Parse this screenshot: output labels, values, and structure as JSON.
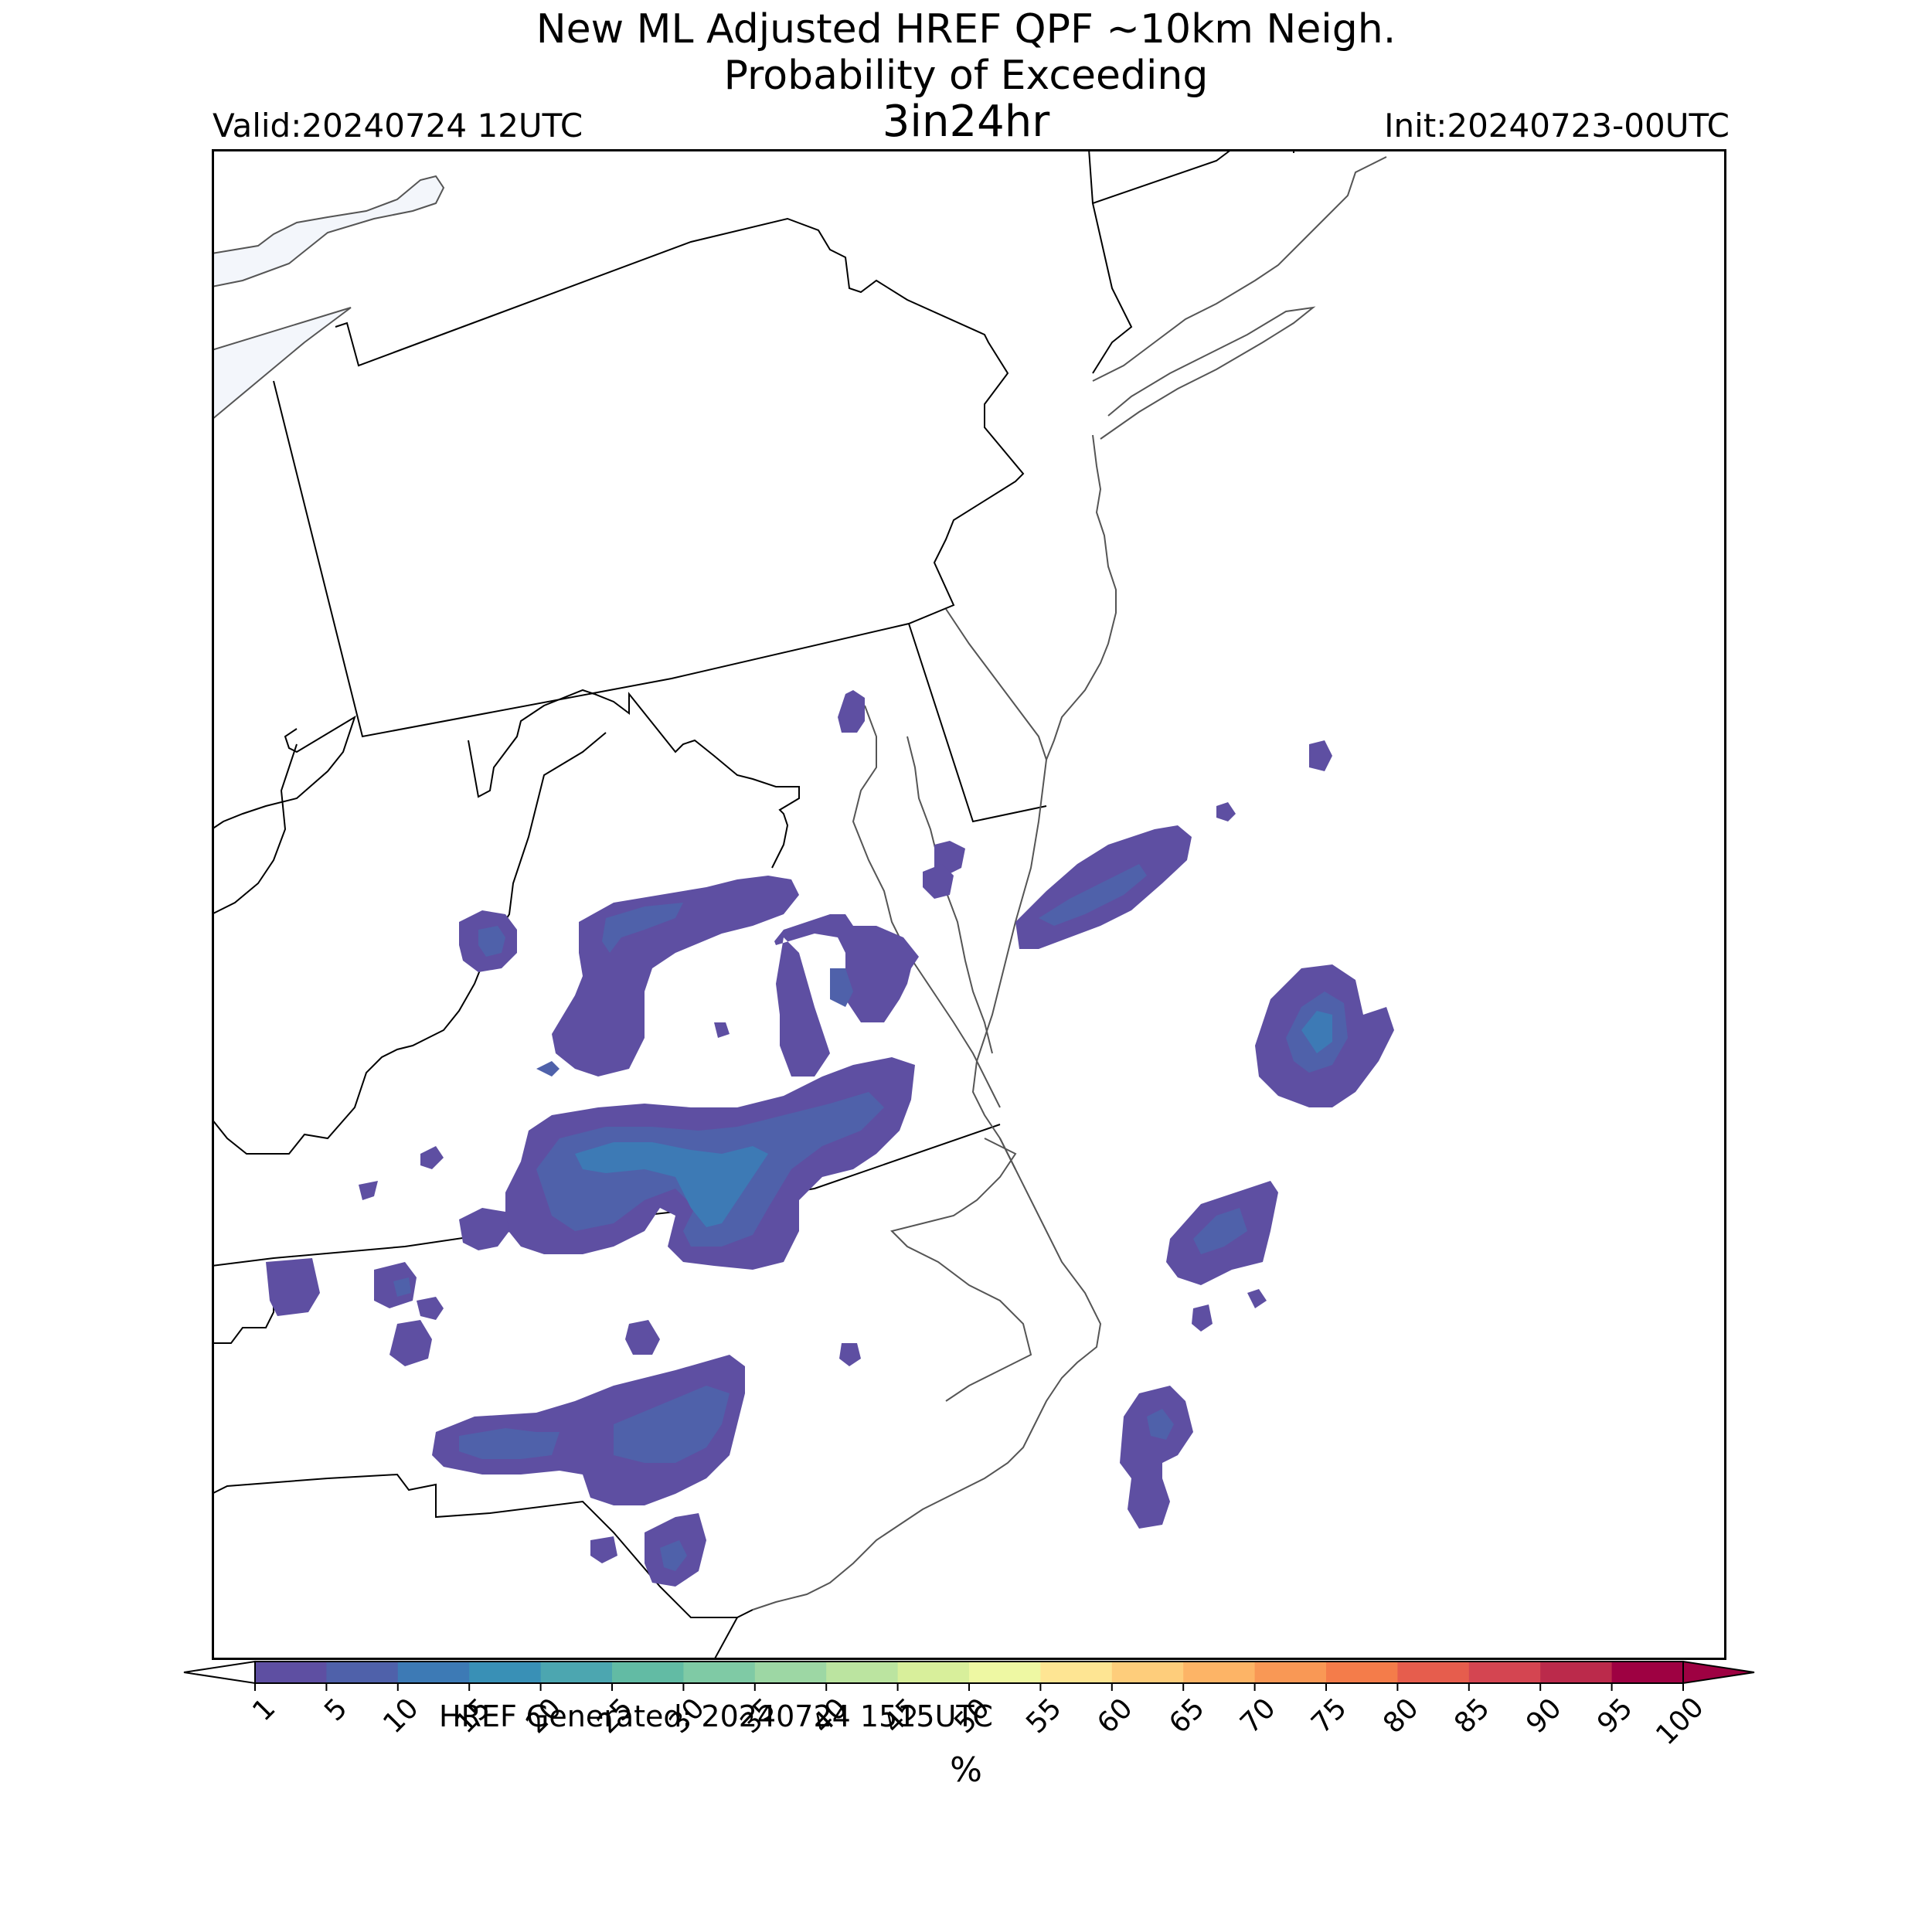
{
  "title": {
    "line1": "New ML Adjusted HREF QPF ~10km Neigh.",
    "line2": "Probability of Exceeding",
    "line3": "3in24hr"
  },
  "valid_label": "Valid:20240724 12UTC",
  "init_label": "Init:20240723-00UTC",
  "generated_label": "HREF Generated: 20240724 1515UTC",
  "colorbar": {
    "unit_label": "%",
    "ticks": [
      "1",
      "5",
      "10",
      "15",
      "20",
      "25",
      "30",
      "35",
      "40",
      "45",
      "50",
      "55",
      "60",
      "65",
      "70",
      "75",
      "80",
      "85",
      "90",
      "95",
      "100"
    ],
    "colors": [
      "#5e4fa2",
      "#4f61aa",
      "#3d7ab5",
      "#3990b6",
      "#4ca6b0",
      "#62bba4",
      "#7fcaa5",
      "#9dd7a4",
      "#bbe4a0",
      "#d8ef9b",
      "#eef8a3",
      "#fee593",
      "#fecd7b",
      "#fdb466",
      "#f99855",
      "#f47c4a",
      "#e65d4d",
      "#d44551",
      "#bb2a4b",
      "#9e0142"
    ],
    "extend": "both"
  },
  "colors": {
    "prob_low": "#5e4fa2",
    "prob_mid": "#4f61aa",
    "prob_high": "#3d7ab5",
    "lake": "#f3f6fb",
    "border": "#000000",
    "coast": "#555555"
  }
}
